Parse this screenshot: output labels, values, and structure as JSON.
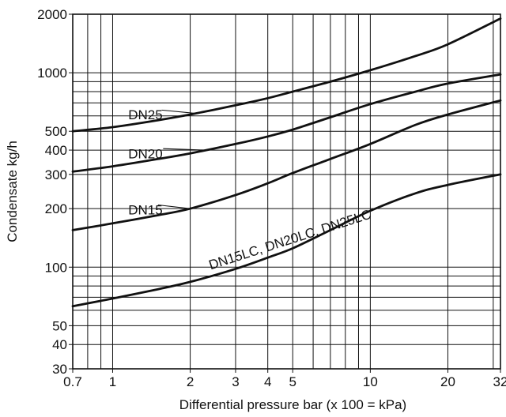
{
  "chart_data": {
    "type": "line",
    "title": "",
    "xlabel": "Differential pressure bar (x 100 = kPa)",
    "ylabel": "Condensate kg/h",
    "x_scale": "log",
    "y_scale": "log",
    "xlim": [
      0.7,
      32
    ],
    "ylim": [
      30,
      2000
    ],
    "grid": true,
    "x_ticks": [
      {
        "value": 0.7,
        "label": "0.7"
      },
      {
        "value": 1,
        "label": "1"
      },
      {
        "value": 2,
        "label": "2"
      },
      {
        "value": 3,
        "label": "3"
      },
      {
        "value": 4,
        "label": "4"
      },
      {
        "value": 5,
        "label": "5"
      },
      {
        "value": 10,
        "label": "10"
      },
      {
        "value": 20,
        "label": "20"
      },
      {
        "value": 32,
        "label": "32"
      }
    ],
    "y_ticks": [
      {
        "value": 30,
        "label": "30"
      },
      {
        "value": 40,
        "label": "40"
      },
      {
        "value": 50,
        "label": "50"
      },
      {
        "value": 100,
        "label": "100"
      },
      {
        "value": 200,
        "label": "200"
      },
      {
        "value": 300,
        "label": "300"
      },
      {
        "value": 400,
        "label": "400"
      },
      {
        "value": 500,
        "label": "500"
      },
      {
        "value": 1000,
        "label": "1000"
      },
      {
        "value": 2000,
        "label": "2000"
      }
    ],
    "x_grid": [
      0.7,
      0.8,
      0.9,
      1,
      2,
      3,
      4,
      5,
      6,
      7,
      8,
      9,
      10,
      20,
      30,
      32
    ],
    "y_grid": [
      30,
      40,
      50,
      60,
      70,
      80,
      90,
      100,
      200,
      300,
      400,
      500,
      600,
      700,
      800,
      900,
      1000,
      2000
    ],
    "series": [
      {
        "name": "DN25",
        "x": [
          0.7,
          1,
          1.5,
          2,
          3,
          4,
          5,
          7,
          10,
          15,
          20,
          32
        ],
        "y": [
          500,
          525,
          570,
          610,
          680,
          740,
          800,
          900,
          1030,
          1220,
          1400,
          1900
        ]
      },
      {
        "name": "DN20",
        "x": [
          0.7,
          1,
          1.5,
          2,
          3,
          4,
          5,
          7,
          10,
          15,
          20,
          32
        ],
        "y": [
          310,
          330,
          360,
          385,
          430,
          470,
          510,
          590,
          690,
          800,
          880,
          980
        ]
      },
      {
        "name": "DN15",
        "x": [
          0.7,
          1,
          1.5,
          2,
          3,
          4,
          5,
          7,
          10,
          15,
          20,
          32
        ],
        "y": [
          155,
          168,
          185,
          200,
          235,
          270,
          305,
          360,
          430,
          540,
          610,
          720
        ]
      },
      {
        "name": "DN15LC, DN20LC, DN25LC",
        "x": [
          0.7,
          1,
          1.5,
          2,
          3,
          4,
          5,
          7,
          10,
          15,
          20,
          32
        ],
        "y": [
          63,
          69,
          77,
          84,
          98,
          112,
          125,
          155,
          195,
          240,
          265,
          300
        ]
      }
    ]
  }
}
